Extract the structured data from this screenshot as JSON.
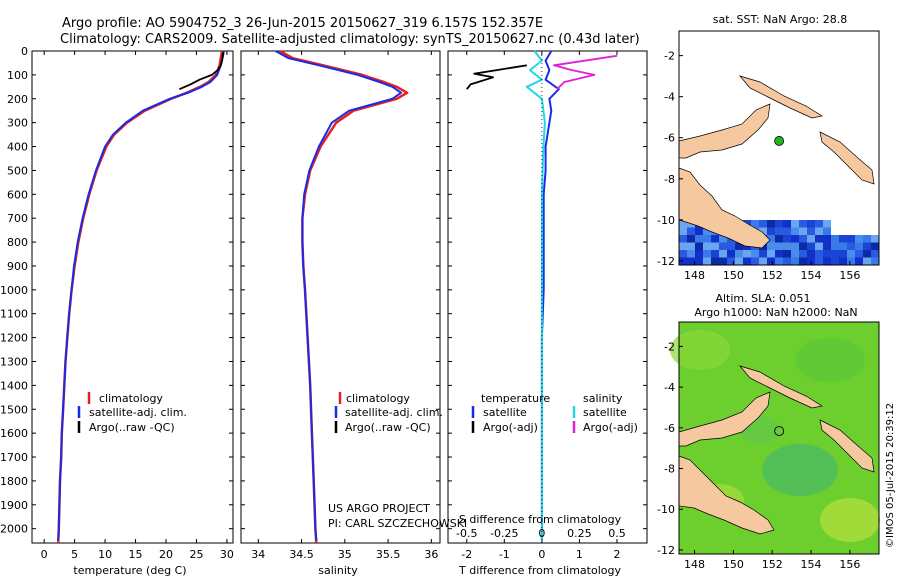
{
  "header": {
    "title_line1": "Argo profile: AO 5904752_3 26-Jun-2015 20150627_319 6.157S 152.357E",
    "title_line2": "Climatology: CARS2009. Satellite-adjusted climatology: synTS_20150627.nc (0.43d later)"
  },
  "colors": {
    "climatology": "#e8201a",
    "satellite": "#1a2be8",
    "argo": "#000000",
    "salinity_satellite": "#22d8e8",
    "salinity_argo": "#e020d8",
    "land": "#f5c8a0",
    "sst_ocean": "#2a6ad8",
    "sla_field": "#6ccf2e",
    "profile_marker": "#1db81d"
  },
  "chart_data": [
    {
      "type": "line",
      "id": "temperature",
      "xlabel": "temperature (deg C)",
      "ylabel": "",
      "xlim": [
        -2,
        31
      ],
      "ylim": [
        2060,
        0
      ],
      "xticks": [
        "0",
        "5",
        "10",
        "15",
        "20",
        "25",
        "30"
      ],
      "yticks": [
        "0",
        "100",
        "200",
        "300",
        "400",
        "500",
        "600",
        "700",
        "800",
        "900",
        "1000",
        "1100",
        "1200",
        "1300",
        "1400",
        "1500",
        "1600",
        "1700",
        "1800",
        "1900",
        "2000"
      ],
      "legend": [
        "climatology",
        "satellite-adj. clim.",
        "Argo(..raw -QC)"
      ],
      "series": [
        {
          "name": "climatology",
          "depth": [
            0,
            30,
            60,
            100,
            130,
            150,
            175,
            200,
            250,
            300,
            350,
            400,
            500,
            600,
            700,
            800,
            900,
            1000,
            1100,
            1200,
            1300,
            1400,
            1500,
            1600,
            1700,
            1800,
            1900,
            2000,
            2060
          ],
          "values": [
            29.2,
            29.0,
            28.8,
            28.2,
            27.0,
            25.6,
            23.4,
            20.8,
            16.5,
            13.6,
            11.5,
            10.2,
            8.6,
            7.4,
            6.4,
            5.6,
            5.0,
            4.5,
            4.1,
            3.8,
            3.5,
            3.3,
            3.1,
            2.9,
            2.8,
            2.6,
            2.5,
            2.4,
            2.3
          ]
        },
        {
          "name": "satellite-adj. clim.",
          "depth": [
            0,
            30,
            60,
            100,
            130,
            150,
            175,
            200,
            250,
            300,
            350,
            400,
            500,
            600,
            700,
            800,
            900,
            1000,
            1100,
            1200,
            1300,
            1400,
            1500,
            1600,
            1700,
            1800,
            1900,
            2000,
            2050
          ],
          "values": [
            29.5,
            29.3,
            29.0,
            28.4,
            27.3,
            25.9,
            23.6,
            20.6,
            16.2,
            13.4,
            11.3,
            10.0,
            8.5,
            7.3,
            6.3,
            5.5,
            4.9,
            4.5,
            4.1,
            3.8,
            3.5,
            3.3,
            3.1,
            2.9,
            2.8,
            2.6,
            2.5,
            2.4,
            2.3
          ]
        },
        {
          "name": "Argo(..raw -QC)",
          "depth": [
            5,
            40,
            60,
            80,
            100,
            120,
            140,
            160
          ],
          "values": [
            29.4,
            29.2,
            29.0,
            28.5,
            27.5,
            25.5,
            24.0,
            22.2
          ]
        }
      ]
    },
    {
      "type": "line",
      "id": "salinity",
      "xlabel": "salinity",
      "xlim": [
        33.8,
        36.1
      ],
      "ylim": [
        2060,
        0
      ],
      "xticks": [
        "34",
        "34.5",
        "35",
        "35.5",
        "36"
      ],
      "legend": [
        "climatology",
        "satellite-adj. clim.",
        "Argo(..raw -QC)"
      ],
      "annotation": [
        "US ARGO PROJECT",
        "PI: CARL SZCZECHOWSKI"
      ],
      "series": [
        {
          "name": "climatology",
          "depth": [
            0,
            30,
            60,
            100,
            130,
            150,
            175,
            200,
            250,
            300,
            400,
            500,
            600,
            700,
            800,
            900,
            1000,
            1200,
            1400,
            1600,
            1800,
            2000,
            2060
          ],
          "values": [
            34.25,
            34.4,
            34.75,
            35.2,
            35.45,
            35.6,
            35.72,
            35.6,
            35.1,
            34.9,
            34.72,
            34.6,
            34.54,
            34.51,
            34.51,
            34.52,
            34.54,
            34.57,
            34.6,
            34.62,
            34.64,
            34.66,
            34.67
          ]
        },
        {
          "name": "satellite-adj. clim.",
          "depth": [
            0,
            30,
            60,
            100,
            130,
            150,
            175,
            200,
            250,
            300,
            400,
            500,
            600,
            700,
            800,
            900,
            1000,
            1200,
            1400,
            1600,
            1800,
            2000,
            2050
          ],
          "values": [
            34.2,
            34.35,
            34.7,
            35.15,
            35.4,
            35.55,
            35.65,
            35.55,
            35.05,
            34.85,
            34.7,
            34.59,
            34.53,
            34.51,
            34.51,
            34.52,
            34.54,
            34.57,
            34.6,
            34.62,
            34.64,
            34.66,
            34.67
          ]
        }
      ]
    },
    {
      "type": "line",
      "id": "difference",
      "xlabel_top": "S difference from climatology",
      "xlabel": "T difference from climatology",
      "xlim": [
        -2.5,
        2.8
      ],
      "ylim": [
        2060,
        0
      ],
      "xticks_bottom": [
        "-2",
        "-1",
        "0",
        "1",
        "2"
      ],
      "xticks_top": [
        "-0.5",
        "-0.25",
        "0",
        "0.25",
        "0.5"
      ],
      "legend": {
        "temperature": [
          "satellite",
          "Argo(-adj)"
        ],
        "salinity": [
          "satellite",
          "Argo(-adj)"
        ],
        "headings": [
          "temperature",
          "salinity"
        ]
      },
      "series": [
        {
          "name": "temperature satellite",
          "depth": [
            0,
            40,
            80,
            120,
            160,
            200,
            250,
            300,
            400,
            500,
            600,
            800,
            1000,
            1200,
            1500,
            1800,
            2050
          ],
          "values": [
            0.25,
            0.1,
            0.2,
            0.1,
            0.45,
            0.2,
            0.25,
            0.2,
            0.1,
            0.1,
            0.05,
            0.05,
            0.05,
            0.0,
            0.0,
            0.0,
            0.0
          ]
        },
        {
          "name": "temperature Argo(-adj)",
          "depth": [
            60,
            80,
            95,
            110,
            125,
            140,
            160
          ],
          "values": [
            -0.4,
            -1.2,
            -1.8,
            -1.3,
            -1.6,
            -1.9,
            -2.0
          ]
        },
        {
          "name": "salinity satellite",
          "depth": [
            0,
            40,
            80,
            120,
            150,
            200,
            300,
            400,
            600,
            800,
            1000,
            1500,
            2050
          ],
          "values": [
            -0.05,
            0.0,
            -0.08,
            0.0,
            -0.1,
            0.0,
            0.02,
            0.01,
            0.0,
            0.0,
            0.0,
            0.0,
            0.0
          ]
        },
        {
          "name": "salinity Argo(-adj)",
          "depth": [
            20,
            60,
            80,
            100,
            130,
            160
          ],
          "values": [
            0.5,
            0.08,
            0.2,
            0.35,
            0.15,
            0.1
          ]
        }
      ]
    }
  ],
  "maps": {
    "sst": {
      "title": "sat. SST: NaN Argo: 28.8",
      "xticks": [
        "148",
        "150",
        "152",
        "154",
        "156"
      ],
      "yticks": [
        "-2",
        "-4",
        "-6",
        "-8",
        "-10",
        "-12"
      ],
      "lon_range": [
        147.2,
        157.5
      ],
      "lat_range": [
        -12.2,
        -0.8
      ],
      "marker": {
        "lon": 152.357,
        "lat": -6.157
      }
    },
    "sla": {
      "title1": "Altim. SLA: 0.051",
      "title2": "Argo h1000: NaN h2000: NaN",
      "xticks": [
        "148",
        "150",
        "152",
        "154",
        "156"
      ],
      "yticks": [
        "-2",
        "-4",
        "-6",
        "-8",
        "-10",
        "-12"
      ],
      "lon_range": [
        147.2,
        157.5
      ],
      "lat_range": [
        -12.2,
        -0.8
      ],
      "marker": {
        "lon": 152.357,
        "lat": -6.157
      }
    }
  },
  "footer": {
    "stamp": "©IMOS 05-Jul-2015 20:39:12"
  }
}
